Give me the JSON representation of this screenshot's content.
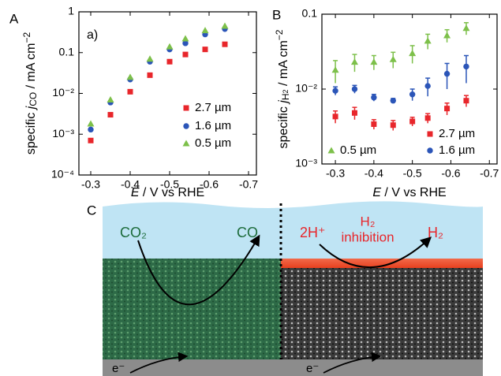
{
  "panel_labels": [
    "A",
    "B",
    "C"
  ],
  "chart_data": [
    {
      "type": "scatter",
      "annotation": "a)",
      "ylabel_parts": [
        "specific ",
        "j",
        "CO",
        " / mA cm",
        "−2"
      ],
      "xlabel_parts": [
        "E",
        " / V vs RHE"
      ],
      "yscale": "log",
      "x": [
        -0.3,
        -0.35,
        -0.4,
        -0.45,
        -0.5,
        -0.54,
        -0.59,
        -0.64
      ],
      "xlim": [
        -0.27,
        -0.72
      ],
      "xticks": [
        -0.3,
        -0.4,
        -0.5,
        -0.6,
        -0.7
      ],
      "ylim": [
        0.0001,
        1
      ],
      "yticks": [
        {
          "value": 0.0001,
          "label": "10⁻⁴"
        },
        {
          "value": 0.001,
          "label": "10⁻³"
        },
        {
          "value": 0.01,
          "label": "10⁻²"
        },
        0.1,
        1
      ],
      "series": [
        {
          "name": "2.7 µm",
          "color": "#e8262b",
          "marker": "square",
          "values": [
            0.0007,
            0.003,
            0.011,
            0.028,
            0.06,
            0.09,
            0.12,
            0.16
          ]
        },
        {
          "name": "1.6 µm",
          "color": "#2b55b8",
          "marker": "circle",
          "values": [
            0.0013,
            0.006,
            0.022,
            0.06,
            0.12,
            0.17,
            0.28,
            0.38
          ]
        },
        {
          "name": "0.5 µm",
          "color": "#7dc04a",
          "marker": "triangle",
          "values": [
            0.0018,
            0.007,
            0.025,
            0.07,
            0.14,
            0.22,
            0.35,
            0.45
          ]
        }
      ]
    },
    {
      "type": "scatter",
      "ylabel_parts": [
        "specific ",
        "j",
        "H",
        "2",
        " / mA cm",
        "−2"
      ],
      "xlabel_parts": [
        "E",
        " / V vs RHE"
      ],
      "yscale": "log",
      "x": [
        -0.3,
        -0.35,
        -0.4,
        -0.45,
        -0.5,
        -0.54,
        -0.59,
        -0.64
      ],
      "xlim": [
        -0.265,
        -0.72
      ],
      "xticks": [
        -0.3,
        -0.4,
        -0.5,
        -0.6,
        -0.7
      ],
      "ylim": [
        0.001,
        0.1
      ],
      "yticks": [
        {
          "value": 0.001,
          "label": "10⁻³"
        },
        {
          "value": 0.01,
          "label": "10⁻²"
        },
        0.1
      ],
      "series": [
        {
          "name": "2.7 µm",
          "color": "#e8262b",
          "marker": "square",
          "values": [
            0.0043,
            0.0048,
            0.0034,
            0.0033,
            0.0037,
            0.0041,
            0.0055,
            0.007
          ],
          "errors": [
            0.0008,
            0.0009,
            0.0005,
            0.0005,
            0.0005,
            0.0006,
            0.001,
            0.0012
          ]
        },
        {
          "name": "1.6 µm",
          "color": "#2b55b8",
          "marker": "circle",
          "values": [
            0.0095,
            0.01,
            0.0077,
            0.007,
            0.0085,
            0.011,
            0.016,
            0.02
          ],
          "errors": [
            0.0012,
            0.0012,
            0.0008,
            0.0005,
            0.0015,
            0.003,
            0.006,
            0.008
          ]
        },
        {
          "name": "0.5 µm",
          "color": "#7dc04a",
          "marker": "triangle",
          "values": [
            0.018,
            0.023,
            0.023,
            0.025,
            0.03,
            0.044,
            0.052,
            0.065
          ],
          "errors": [
            0.006,
            0.006,
            0.005,
            0.006,
            0.008,
            0.01,
            0.01,
            0.012
          ]
        }
      ]
    }
  ],
  "panel_c": {
    "left_reactant": "CO₂",
    "left_product": "CO",
    "right_reactant": "2H⁺",
    "right_product_top": "H₂",
    "right_label": "inhibition",
    "right_product": "H₂",
    "electron_left": "e⁻",
    "electron_right": "e⁻"
  }
}
